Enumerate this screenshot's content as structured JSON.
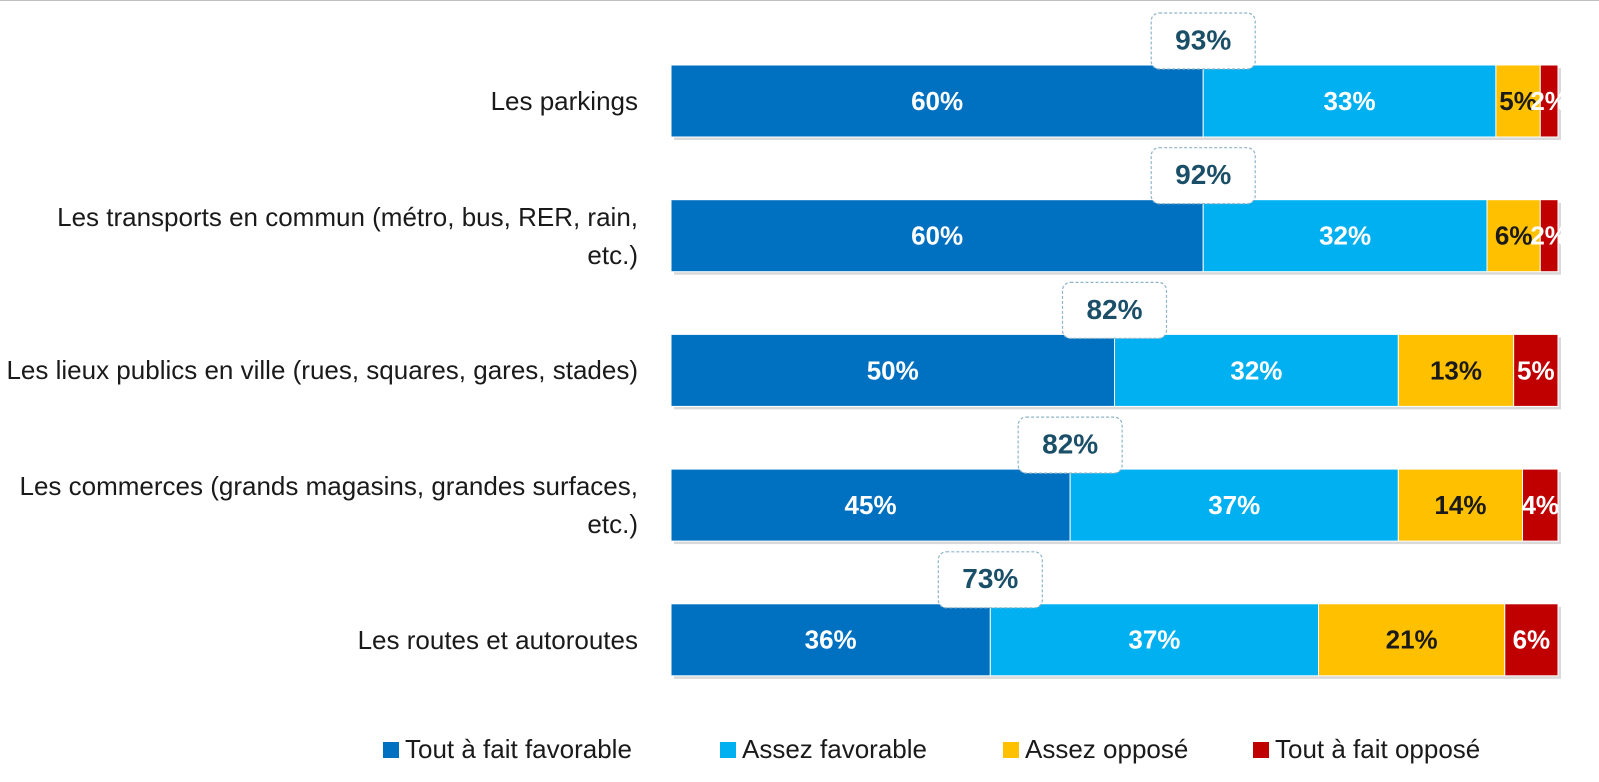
{
  "chart_data": {
    "type": "stacked_barh",
    "categories": [
      "Les parkings",
      "Les transports en commun (métro, bus, RER, rain, etc.)",
      "Les lieux publics en ville (rues, squares, gares, stades)",
      "Les commerces (grands magasins, grandes surfaces, etc.)",
      "Les routes et autoroutes"
    ],
    "series": [
      {
        "name": "Tout à fait favorable",
        "color": "#0070c0",
        "label_color": "#ffffff",
        "values": [
          60,
          60,
          50,
          45,
          36
        ],
        "value_labels": [
          "60%",
          "60%",
          "50%",
          "45%",
          "36%"
        ]
      },
      {
        "name": "Assez favorable",
        "color": "#00b0f0",
        "label_color": "#ffffff",
        "values": [
          33,
          32,
          32,
          37,
          37
        ],
        "value_labels": [
          "33%",
          "32%",
          "32%",
          "37%",
          "37%"
        ]
      },
      {
        "name": "Assez opposé",
        "color": "#ffc000",
        "label_color": "#1a1a1a",
        "values": [
          5,
          6,
          13,
          14,
          21
        ],
        "value_labels": [
          "5%",
          "6%",
          "13%",
          "14%",
          "21%"
        ]
      },
      {
        "name": "Tout à fait opposé",
        "color": "#c00000",
        "label_color": "#ffffff",
        "values": [
          2,
          2,
          5,
          4,
          6
        ],
        "value_labels": [
          "2%",
          "2%",
          "5%",
          "4%",
          "6%"
        ]
      }
    ],
    "favorable_totals": {
      "values": [
        93,
        92,
        82,
        82,
        73
      ],
      "value_labels": [
        "93%",
        "92%",
        "82%",
        "82%",
        "73%"
      ]
    },
    "xlim": [
      0,
      100
    ],
    "legend": "bottom"
  }
}
